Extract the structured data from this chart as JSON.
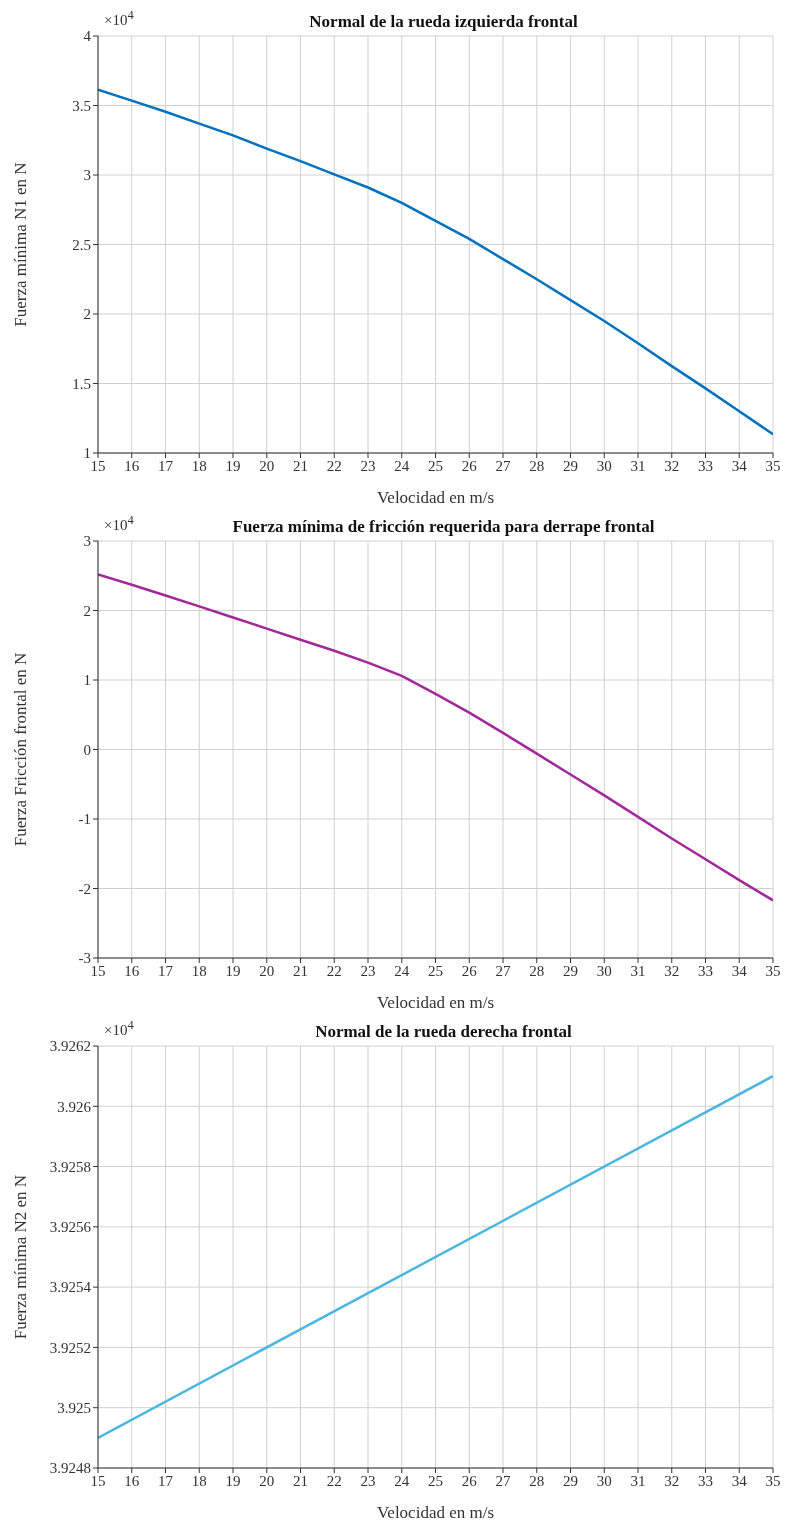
{
  "chart_data": [
    {
      "type": "line",
      "title": "Normal de la rueda izquierda frontal",
      "xlabel": "Velocidad en m/s",
      "ylabel": "Fuerza mínima N1 en N",
      "annotations": [
        "×10$^{4}$"
      ],
      "x": [
        15,
        16,
        17,
        18,
        19,
        20,
        21,
        22,
        23,
        24,
        25,
        26,
        27,
        28,
        29,
        30,
        31,
        32,
        33,
        34,
        35
      ],
      "series": [
        {
          "color": "#0072bd",
          "values": [
            3.614,
            3.535,
            3.455,
            3.37,
            3.285,
            3.19,
            3.1,
            3.005,
            2.91,
            2.8,
            2.67,
            2.54,
            2.395,
            2.25,
            2.1,
            1.95,
            1.79,
            1.625,
            1.465,
            1.3,
            1.135
          ]
        }
      ],
      "xlim": [
        15,
        35
      ],
      "xticks": [
        15,
        16,
        17,
        18,
        19,
        20,
        21,
        22,
        23,
        24,
        25,
        26,
        27,
        28,
        29,
        30,
        31,
        32,
        33,
        34,
        35
      ],
      "ylim": [
        1,
        4
      ],
      "yticks": [
        1,
        1.5,
        2,
        2.5,
        3,
        3.5,
        4
      ],
      "grid": true
    },
    {
      "type": "line",
      "title": "Fuerza mínima de fricción requerida para derrape frontal",
      "xlabel": "Velocidad en m/s",
      "ylabel": "Fuerza Fricción frontal en N",
      "annotations": [
        "×10$^{4}$"
      ],
      "x": [
        15,
        16,
        17,
        18,
        19,
        20,
        21,
        22,
        23,
        24,
        25,
        26,
        27,
        28,
        29,
        30,
        31,
        32,
        33,
        34,
        35
      ],
      "series": [
        {
          "color": "#a2289a",
          "values": [
            2.52,
            2.37,
            2.215,
            2.06,
            1.9,
            1.74,
            1.58,
            1.42,
            1.25,
            1.06,
            0.8,
            0.53,
            0.24,
            -0.06,
            -0.36,
            -0.66,
            -0.97,
            -1.28,
            -1.58,
            -1.88,
            -2.17
          ]
        }
      ],
      "xlim": [
        15,
        35
      ],
      "xticks": [
        15,
        16,
        17,
        18,
        19,
        20,
        21,
        22,
        23,
        24,
        25,
        26,
        27,
        28,
        29,
        30,
        31,
        32,
        33,
        34,
        35
      ],
      "ylim": [
        -3,
        3
      ],
      "yticks": [
        -3,
        -2,
        -1,
        0,
        1,
        2,
        3
      ],
      "grid": true
    },
    {
      "type": "line",
      "title": "Normal de la rueda derecha frontal",
      "xlabel": "Velocidad en m/s",
      "ylabel": "Fuerza mínima N2 en N",
      "annotations": [
        "×10$^{4}$"
      ],
      "x": [
        15,
        35
      ],
      "series": [
        {
          "color": "#4db6e0",
          "values": [
            3.9249,
            3.9261
          ]
        }
      ],
      "xlim": [
        15,
        35
      ],
      "xticks": [
        15,
        16,
        17,
        18,
        19,
        20,
        21,
        22,
        23,
        24,
        25,
        26,
        27,
        28,
        29,
        30,
        31,
        32,
        33,
        34,
        35
      ],
      "ylim": [
        3.9248,
        3.9262
      ],
      "yticks": [
        3.9248,
        3.925,
        3.9252,
        3.9254,
        3.9256,
        3.9258,
        3.926,
        3.9262
      ],
      "grid": true
    }
  ]
}
